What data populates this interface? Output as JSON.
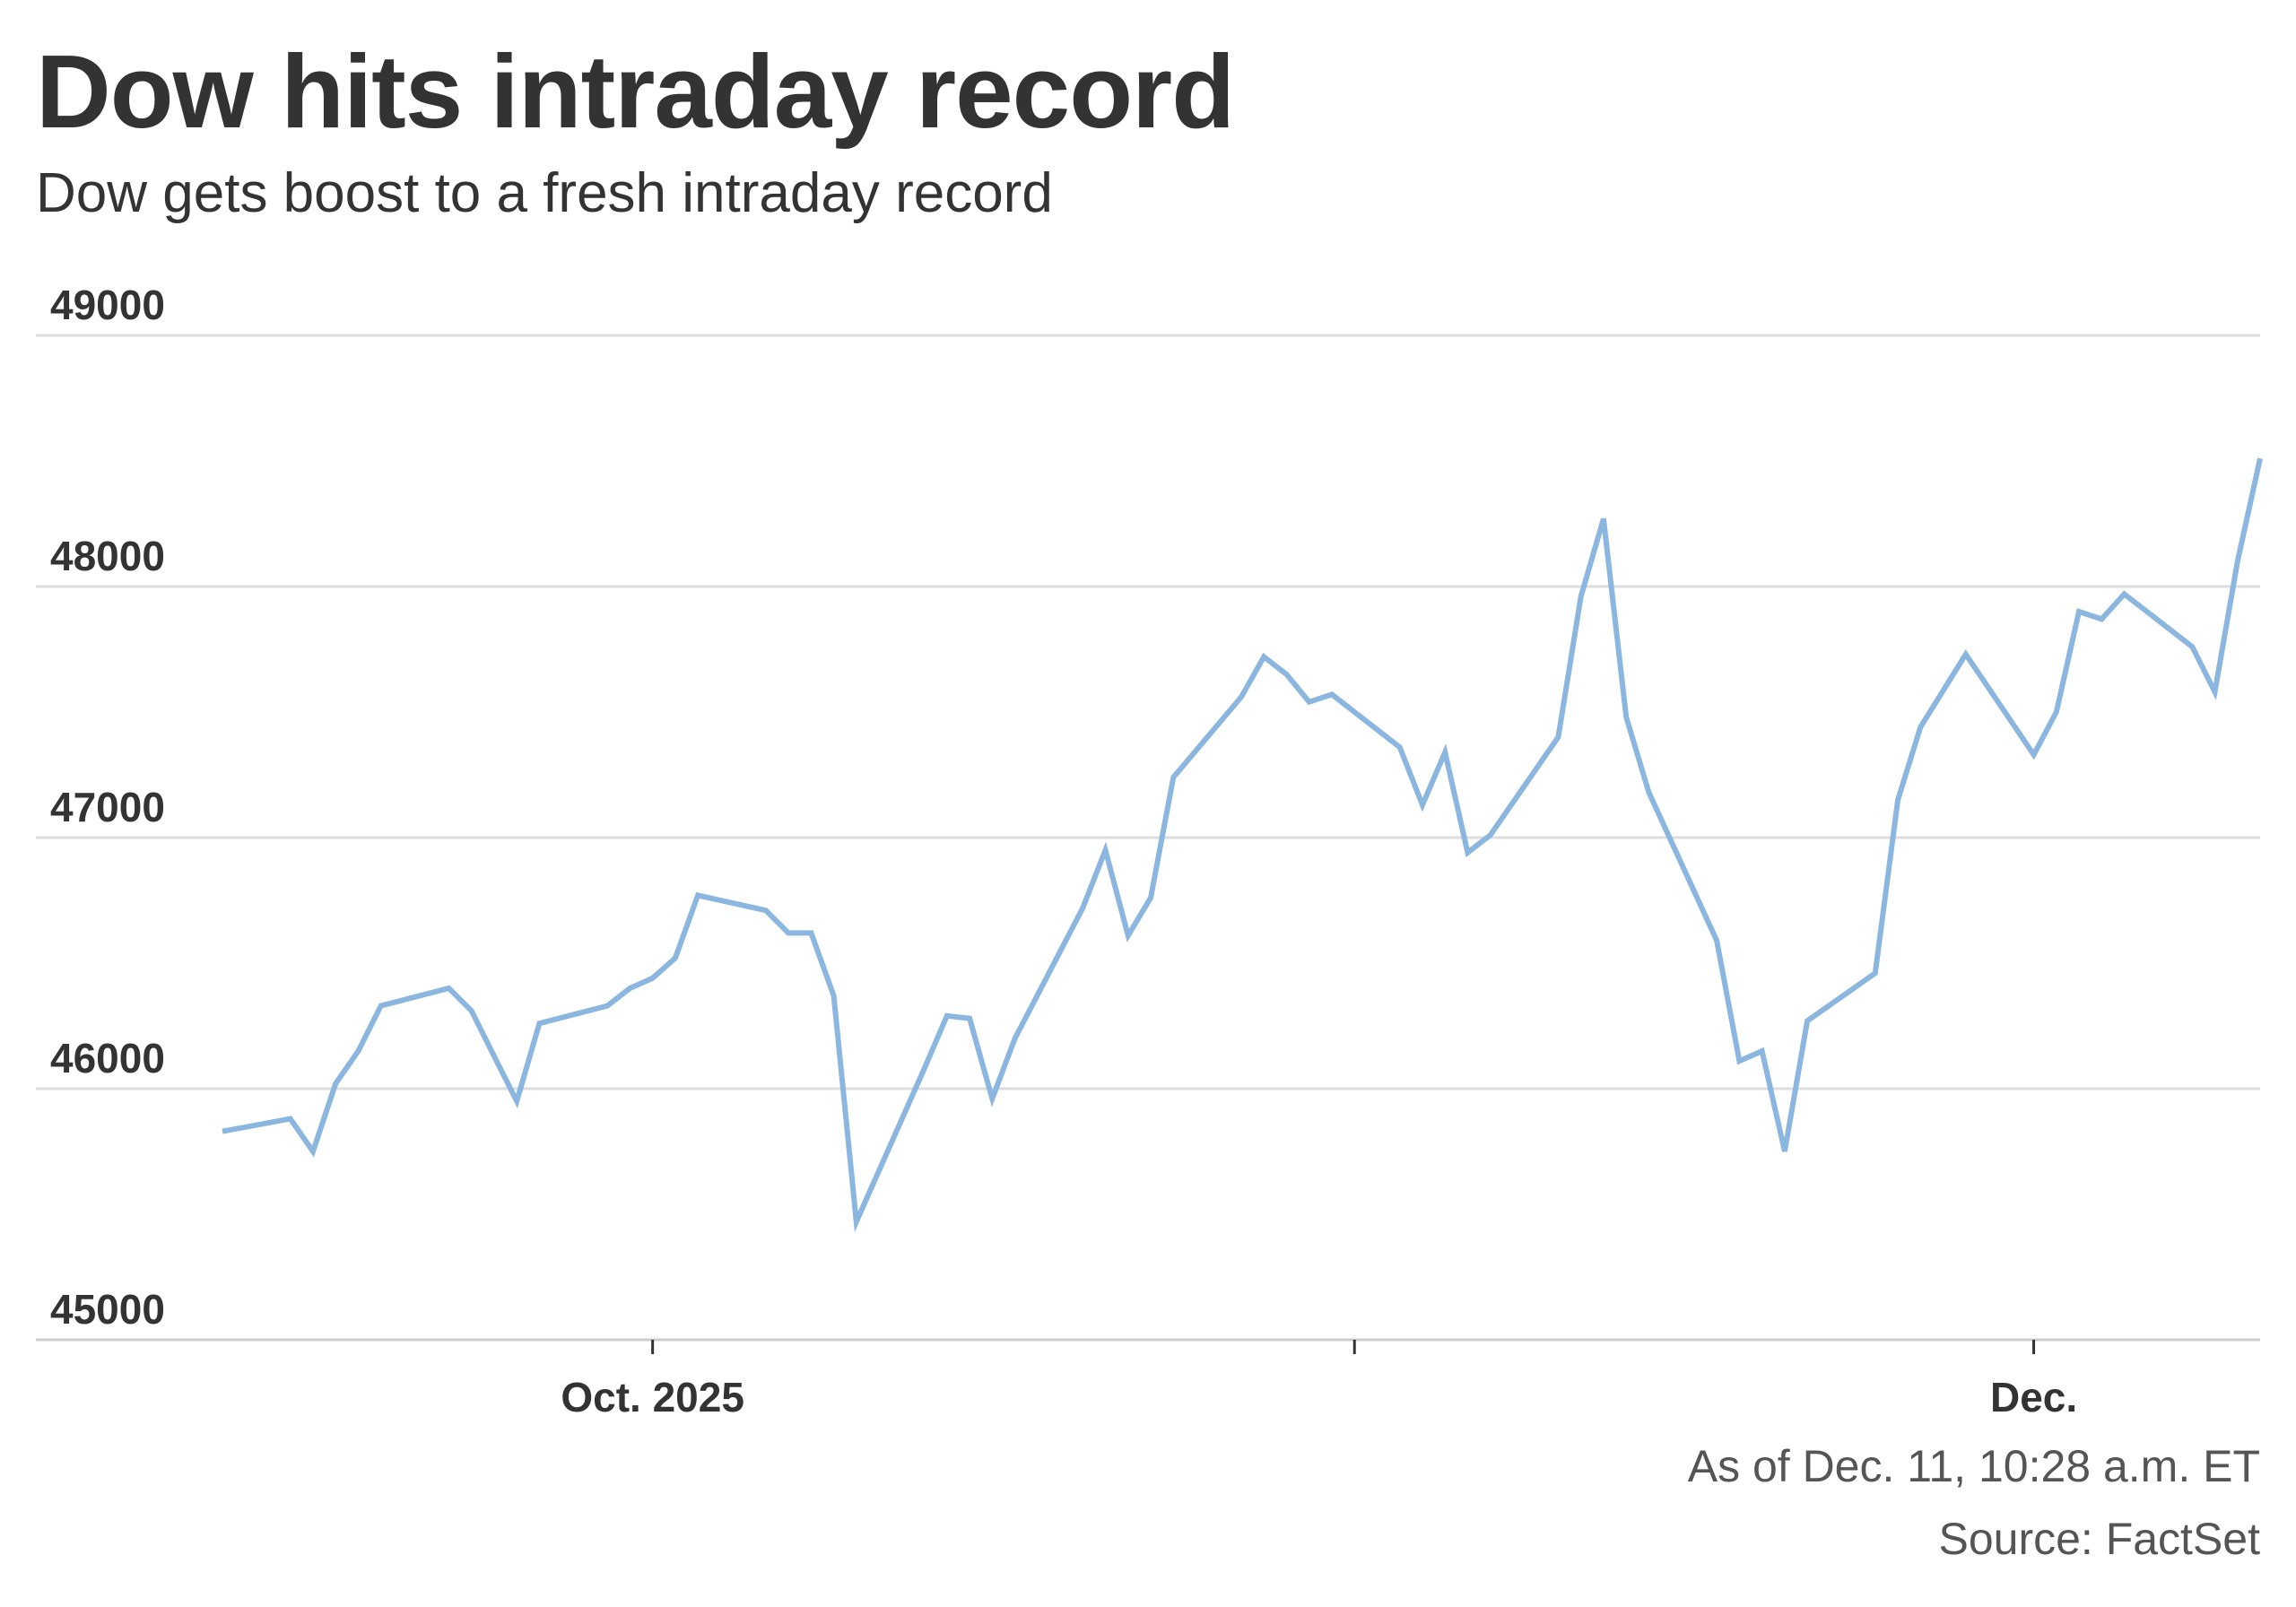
{
  "header": {
    "title": "Dow hits intraday record",
    "subtitle": "Dow gets boost to a fresh intraday record"
  },
  "footer": {
    "as_of": "As of Dec. 11, 10:28 a.m. ET",
    "source": "Source: FactSet"
  },
  "colors": {
    "line": "#8ab6e0",
    "grid": "#dddddd",
    "axis": "#cccccc",
    "text": "#333333",
    "muted": "#555555"
  },
  "chart_data": {
    "type": "line",
    "title": "Dow hits intraday record",
    "subtitle": "Dow gets boost to a fresh intraday record",
    "xlabel": "",
    "ylabel": "",
    "ylim": [
      45000,
      49000
    ],
    "yticks": [
      45000,
      46000,
      47000,
      48000,
      49000
    ],
    "ytick_labels": [
      "45000",
      "46000",
      "47000",
      "48000",
      "49000"
    ],
    "xticks": [
      {
        "date": "2025-10-01",
        "label": "Oct. 2025"
      },
      {
        "date": "2025-11-01",
        "label": ""
      },
      {
        "date": "2025-12-01",
        "label": "Dec."
      }
    ],
    "xlim": [
      "2025-09-12",
      "2025-12-11"
    ],
    "grid": true,
    "legend": "none",
    "series": [
      {
        "x": [
          "2025-09-12",
          "2025-09-15",
          "2025-09-16",
          "2025-09-17",
          "2025-09-18",
          "2025-09-19",
          "2025-09-22",
          "2025-09-23",
          "2025-09-24",
          "2025-09-25",
          "2025-09-26",
          "2025-09-29",
          "2025-09-30",
          "2025-10-01",
          "2025-10-02",
          "2025-10-03",
          "2025-10-06",
          "2025-10-07",
          "2025-10-08",
          "2025-10-09",
          "2025-10-10",
          "2025-10-13",
          "2025-10-14",
          "2025-10-15",
          "2025-10-16",
          "2025-10-17",
          "2025-10-20",
          "2025-10-21",
          "2025-10-22",
          "2025-10-23",
          "2025-10-24",
          "2025-10-27",
          "2025-10-28",
          "2025-10-29",
          "2025-10-30",
          "2025-10-31",
          "2025-11-03",
          "2025-11-04",
          "2025-11-05",
          "2025-11-06",
          "2025-11-07",
          "2025-11-10",
          "2025-11-11",
          "2025-11-12",
          "2025-11-13",
          "2025-11-14",
          "2025-11-17",
          "2025-11-18",
          "2025-11-19",
          "2025-11-20",
          "2025-11-21",
          "2025-11-24",
          "2025-11-25",
          "2025-11-26",
          "2025-11-28",
          "2025-12-01",
          "2025-12-02",
          "2025-12-03",
          "2025-12-04",
          "2025-12-05",
          "2025-12-08",
          "2025-12-09",
          "2025-12-10",
          "2025-12-11"
        ],
        "values": [
          45830,
          45880,
          45750,
          46020,
          46150,
          46330,
          46400,
          46310,
          46130,
          45950,
          46260,
          46330,
          46400,
          46440,
          46520,
          46770,
          46710,
          46620,
          46620,
          46370,
          45470,
          46080,
          46290,
          46280,
          45960,
          46200,
          46720,
          46950,
          46610,
          46760,
          47240,
          47560,
          47720,
          47650,
          47540,
          47570,
          47360,
          47130,
          47340,
          46940,
          47010,
          47400,
          47960,
          48270,
          47480,
          47180,
          46590,
          46110,
          46150,
          45750,
          46270,
          46460,
          47150,
          47440,
          47730,
          47330,
          47500,
          47900,
          47870,
          47970,
          47760,
          47580,
          48100,
          48510
        ]
      }
    ]
  }
}
